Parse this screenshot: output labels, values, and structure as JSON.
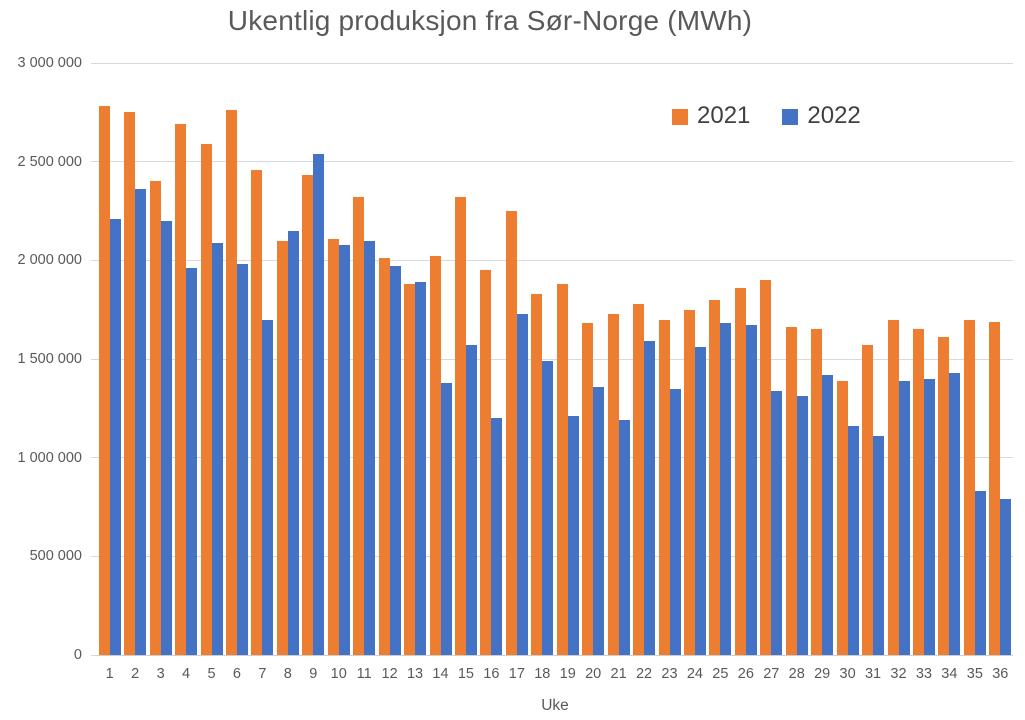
{
  "title": "Ukentlig produksjon fra Sør-Norge (MWh)",
  "legend": {
    "items": [
      {
        "label": "2021",
        "color": "#ED7D31"
      },
      {
        "label": "2022",
        "color": "#4472C4"
      }
    ]
  },
  "colors": {
    "series_2021": "#ED7D31",
    "series_2022": "#4472C4",
    "gridline": "#D9D9D9",
    "axis_text": "#595959",
    "title_text": "#595959",
    "legend_text": "#404040"
  },
  "chart_data": {
    "type": "bar",
    "title": "Ukentlig produksjon fra Sør-Norge (MWh)",
    "xlabel": "Uke",
    "ylabel": "",
    "ylim": [
      0,
      3000000
    ],
    "ytick_interval": 500000,
    "ytick_labels": [
      "0",
      "500 000",
      "1 000 000",
      "1 500 000",
      "2 000 000",
      "2 500 000",
      "3 000 000"
    ],
    "grid": true,
    "legend_position": "top-right-inside",
    "categories": [
      "1",
      "2",
      "3",
      "4",
      "5",
      "6",
      "7",
      "8",
      "9",
      "10",
      "11",
      "12",
      "13",
      "14",
      "15",
      "16",
      "17",
      "18",
      "19",
      "20",
      "21",
      "22",
      "23",
      "24",
      "25",
      "26",
      "27",
      "28",
      "29",
      "30",
      "31",
      "32",
      "33",
      "34",
      "35",
      "36"
    ],
    "series": [
      {
        "name": "2021",
        "color": "#ED7D31",
        "values": [
          2780000,
          2750000,
          2400000,
          2690000,
          2590000,
          2760000,
          2460000,
          2100000,
          2430000,
          2110000,
          2320000,
          2010000,
          1880000,
          2020000,
          2320000,
          1950000,
          2250000,
          1830000,
          1880000,
          1680000,
          1730000,
          1780000,
          1700000,
          1750000,
          1800000,
          1860000,
          1900000,
          1660000,
          1650000,
          1390000,
          1570000,
          1700000,
          1650000,
          1610000,
          1700000,
          1690000
        ]
      },
      {
        "name": "2022",
        "color": "#4472C4",
        "values": [
          2210000,
          2360000,
          2200000,
          1960000,
          2090000,
          1980000,
          1700000,
          2150000,
          2540000,
          2080000,
          2100000,
          1970000,
          1890000,
          1380000,
          1570000,
          1200000,
          1730000,
          1490000,
          1210000,
          1360000,
          1190000,
          1590000,
          1350000,
          1560000,
          1680000,
          1670000,
          1340000,
          1310000,
          1420000,
          1160000,
          1110000,
          1390000,
          1400000,
          1430000,
          830000,
          790000
        ]
      }
    ]
  }
}
